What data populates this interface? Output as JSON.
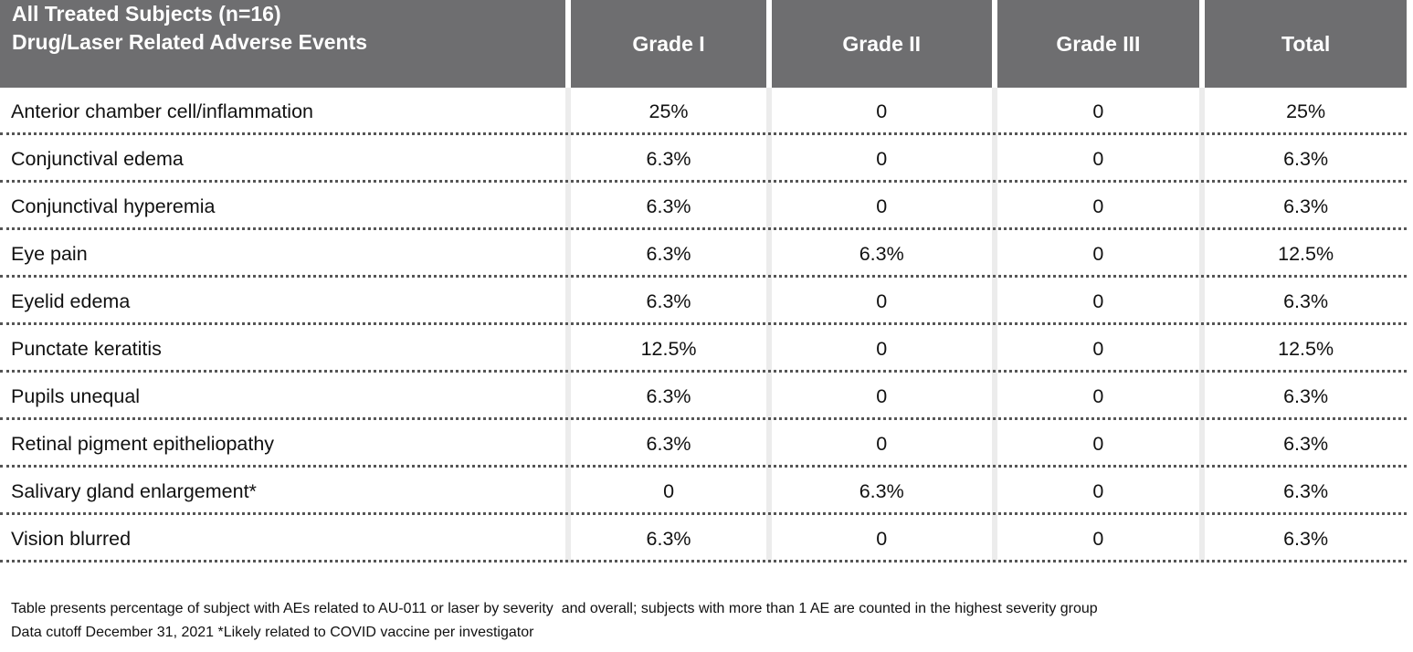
{
  "header": {
    "title_line1": "All Treated Subjects (n=16)",
    "title_line2": "Drug/Laser Related Adverse Events",
    "columns": [
      "Grade I",
      "Grade II",
      "Grade III",
      "Total"
    ]
  },
  "rows": [
    {
      "event": "Anterior chamber cell/inflammation",
      "g1": "25%",
      "g2": "0",
      "g3": "0",
      "total": "25%"
    },
    {
      "event": "Conjunctival edema",
      "g1": "6.3%",
      "g2": "0",
      "g3": "0",
      "total": "6.3%"
    },
    {
      "event": "Conjunctival hyperemia",
      "g1": "6.3%",
      "g2": "0",
      "g3": "0",
      "total": "6.3%"
    },
    {
      "event": "Eye pain",
      "g1": "6.3%",
      "g2": "6.3%",
      "g3": "0",
      "total": "12.5%"
    },
    {
      "event": "Eyelid edema",
      "g1": "6.3%",
      "g2": "0",
      "g3": "0",
      "total": "6.3%"
    },
    {
      "event": "Punctate keratitis",
      "g1": "12.5%",
      "g2": "0",
      "g3": "0",
      "total": "12.5%"
    },
    {
      "event": "Pupils unequal",
      "g1": "6.3%",
      "g2": "0",
      "g3": "0",
      "total": "6.3%"
    },
    {
      "event": "Retinal pigment epitheliopathy",
      "g1": "6.3%",
      "g2": "0",
      "g3": "0",
      "total": "6.3%"
    },
    {
      "event": "Salivary gland enlargement*",
      "g1": "0",
      "g2": "6.3%",
      "g3": "0",
      "total": "6.3%"
    },
    {
      "event": "Vision blurred",
      "g1": "6.3%",
      "g2": "0",
      "g3": "0",
      "total": "6.3%"
    }
  ],
  "footnotes": {
    "line1": "Table presents percentage of subject with AEs related to AU-011 or laser by severity  and overall; subjects with more than 1 AE are counted in the highest severity group",
    "line2": "Data cutoff December 31, 2021 *Likely related to COVID vaccine per investigator"
  },
  "colors": {
    "header_bg": "#6e6e70",
    "header_text": "#ffffff",
    "row_divider": "#555555",
    "column_gap": "#ececec"
  }
}
